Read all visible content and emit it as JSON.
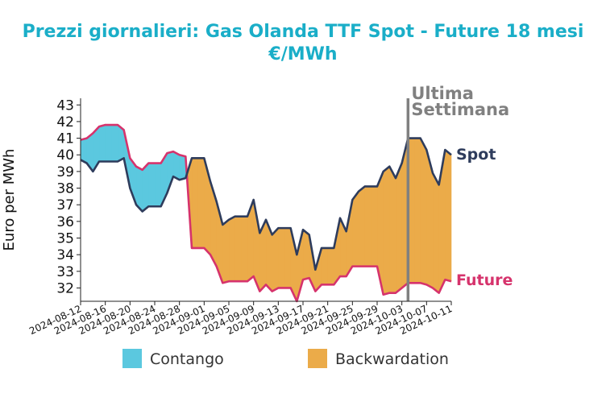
{
  "chart_data": {
    "type": "line",
    "title": "Prezzi giornalieri: Gas Olanda TTF Spot - Future 18 mesi",
    "subtitle": "€/MWh",
    "xlabel": "",
    "ylabel": "Euro per MWh",
    "ylim": [
      31.2,
      43.4
    ],
    "yticks": [
      32,
      33,
      34,
      35,
      36,
      37,
      38,
      39,
      40,
      41,
      42,
      43
    ],
    "xlim": [
      "2024-08-12",
      "2024-10-11"
    ],
    "xticks": [
      "2024-08-12",
      "2024-08-16",
      "2024-08-20",
      "2024-08-24",
      "2024-08-28",
      "2024-09-01",
      "2024-09-05",
      "2024-09-09",
      "2024-09-13",
      "2024-09-17",
      "2024-09-21",
      "2024-09-25",
      "2024-09-29",
      "2024-10-03",
      "2024-10-07",
      "2024-10-11"
    ],
    "grid": false,
    "legend_position": "bottom",
    "legend": [
      {
        "label": "Contango",
        "color": "#5bc8df"
      },
      {
        "label": "Backwardation",
        "color": "#ebab49"
      }
    ],
    "series": [
      {
        "name": "Spot",
        "color": "#2e3c5c",
        "x": [
          "2024-08-12",
          "2024-08-13",
          "2024-08-14",
          "2024-08-15",
          "2024-08-16",
          "2024-08-17",
          "2024-08-18",
          "2024-08-19",
          "2024-08-20",
          "2024-08-21",
          "2024-08-22",
          "2024-08-23",
          "2024-08-24",
          "2024-08-25",
          "2024-08-26",
          "2024-08-27",
          "2024-08-28",
          "2024-08-29",
          "2024-08-30",
          "2024-08-31",
          "2024-09-01",
          "2024-09-02",
          "2024-09-03",
          "2024-09-04",
          "2024-09-05",
          "2024-09-06",
          "2024-09-07",
          "2024-09-08",
          "2024-09-09",
          "2024-09-10",
          "2024-09-11",
          "2024-09-12",
          "2024-09-13",
          "2024-09-14",
          "2024-09-15",
          "2024-09-16",
          "2024-09-17",
          "2024-09-18",
          "2024-09-19",
          "2024-09-20",
          "2024-09-21",
          "2024-09-22",
          "2024-09-23",
          "2024-09-24",
          "2024-09-25",
          "2024-09-26",
          "2024-09-27",
          "2024-09-28",
          "2024-09-29",
          "2024-09-30",
          "2024-10-01",
          "2024-10-02",
          "2024-10-03",
          "2024-10-04",
          "2024-10-05",
          "2024-10-06",
          "2024-10-07",
          "2024-10-08",
          "2024-10-09",
          "2024-10-10",
          "2024-10-11"
        ],
        "values": [
          39.7,
          39.5,
          39.0,
          39.6,
          39.6,
          39.6,
          39.6,
          39.8,
          38.0,
          37.0,
          36.6,
          36.9,
          36.9,
          36.9,
          37.7,
          38.7,
          38.5,
          38.6,
          39.8,
          39.8,
          39.8,
          38.4,
          37.2,
          35.8,
          36.1,
          36.3,
          36.3,
          36.3,
          37.3,
          35.3,
          36.1,
          35.2,
          35.6,
          35.6,
          35.6,
          34.0,
          35.5,
          35.2,
          33.1,
          34.4,
          34.4,
          34.4,
          36.2,
          35.4,
          37.3,
          37.8,
          38.1,
          38.1,
          38.1,
          39.0,
          39.3,
          38.6,
          39.5,
          41.0,
          41.0,
          41.0,
          40.3,
          38.9,
          38.2,
          40.3,
          40.0
        ]
      },
      {
        "name": "Future",
        "color": "#d6336c",
        "x": [
          "2024-08-12",
          "2024-08-13",
          "2024-08-14",
          "2024-08-15",
          "2024-08-16",
          "2024-08-17",
          "2024-08-18",
          "2024-08-19",
          "2024-08-20",
          "2024-08-21",
          "2024-08-22",
          "2024-08-23",
          "2024-08-24",
          "2024-08-25",
          "2024-08-26",
          "2024-08-27",
          "2024-08-28",
          "2024-08-29",
          "2024-08-30",
          "2024-08-31",
          "2024-09-01",
          "2024-09-02",
          "2024-09-03",
          "2024-09-04",
          "2024-09-05",
          "2024-09-06",
          "2024-09-07",
          "2024-09-08",
          "2024-09-09",
          "2024-09-10",
          "2024-09-11",
          "2024-09-12",
          "2024-09-13",
          "2024-09-14",
          "2024-09-15",
          "2024-09-16",
          "2024-09-17",
          "2024-09-18",
          "2024-09-19",
          "2024-09-20",
          "2024-09-21",
          "2024-09-22",
          "2024-09-23",
          "2024-09-24",
          "2024-09-25",
          "2024-09-26",
          "2024-09-27",
          "2024-09-28",
          "2024-09-29",
          "2024-09-30",
          "2024-10-01",
          "2024-10-02",
          "2024-10-03",
          "2024-10-04",
          "2024-10-05",
          "2024-10-06",
          "2024-10-07",
          "2024-10-08",
          "2024-10-09",
          "2024-10-10",
          "2024-10-11"
        ],
        "values": [
          40.9,
          41.0,
          41.3,
          41.7,
          41.8,
          41.8,
          41.8,
          41.5,
          39.8,
          39.3,
          39.1,
          39.5,
          39.5,
          39.5,
          40.1,
          40.2,
          40.0,
          39.9,
          34.4,
          34.4,
          34.4,
          34.0,
          33.3,
          32.3,
          32.4,
          32.4,
          32.4,
          32.4,
          32.7,
          31.8,
          32.2,
          31.8,
          32.0,
          32.0,
          32.0,
          31.2,
          32.5,
          32.6,
          31.8,
          32.2,
          32.2,
          32.2,
          32.7,
          32.7,
          33.3,
          33.3,
          33.3,
          33.3,
          33.3,
          31.6,
          31.7,
          31.7,
          32.0,
          32.3,
          32.3,
          32.3,
          32.2,
          32.0,
          31.7,
          32.5,
          32.4
        ]
      }
    ],
    "annotations": [
      {
        "type": "vline",
        "x": "2024-10-04",
        "label_line1": "Ultima",
        "label_line2": "Settimana",
        "color": "#808080"
      }
    ],
    "end_labels": {
      "spot": "Spot",
      "future": "Future"
    }
  }
}
